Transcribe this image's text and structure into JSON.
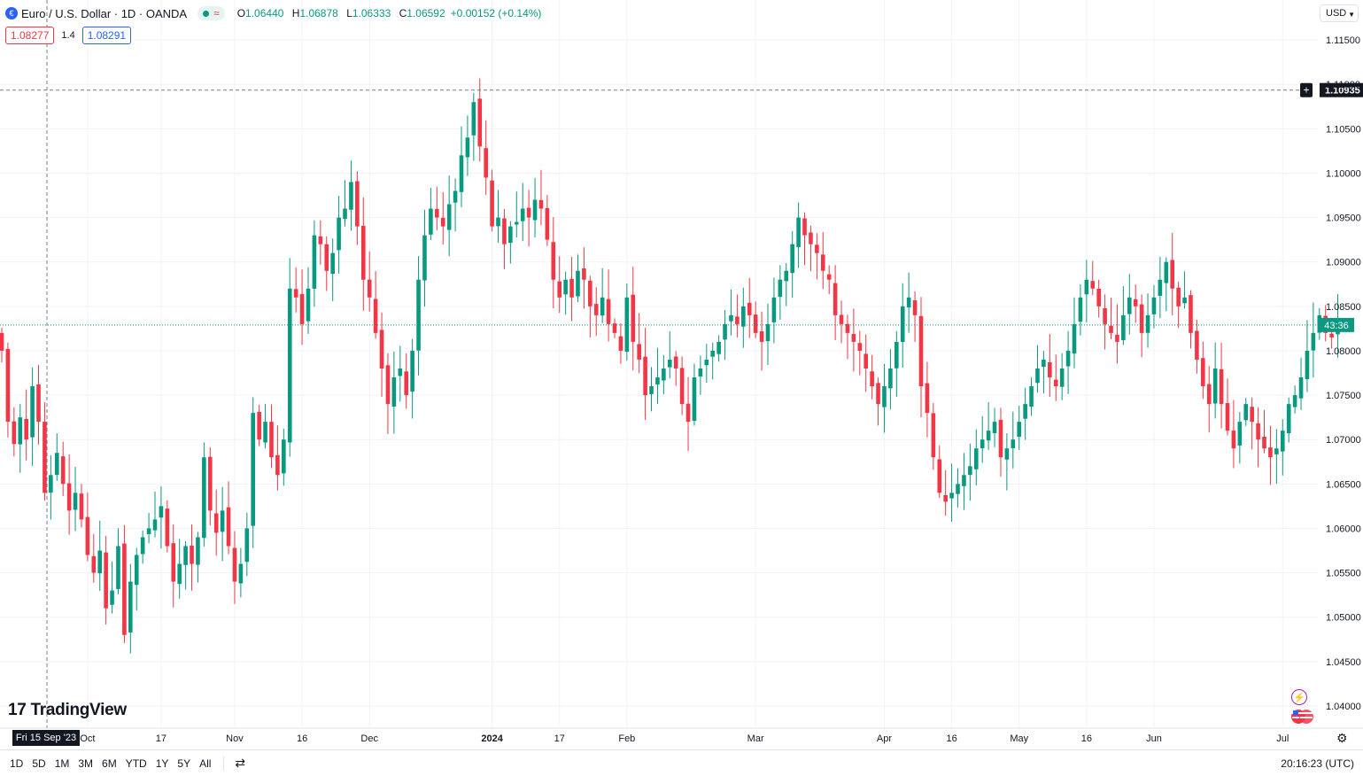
{
  "header": {
    "symbol_title": "Euro / U.S. Dollar · 1D · OANDA",
    "symbol_badge": "€",
    "status_wave": "≈",
    "ohlc": {
      "o_label": "O",
      "o": "1.06440",
      "h_label": "H",
      "h": "1.06878",
      "l_label": "L",
      "l": "1.06333",
      "c_label": "C",
      "c": "1.06592",
      "change": "+0.00152 (+0.14%)"
    },
    "sell_price": "1.08277",
    "spread": "1.4",
    "buy_price": "1.08291",
    "currency": "USD"
  },
  "brand": {
    "logo_mark": "17",
    "name": "TradingView"
  },
  "crosshair": {
    "date_label": "Fri 15 Sep '23",
    "price_label": "1.10935",
    "price": 1.10935
  },
  "bottom_bar": {
    "ranges": [
      "1D",
      "5D",
      "1M",
      "3M",
      "6M",
      "YTD",
      "1Y",
      "5Y",
      "All"
    ],
    "clock": "20:16:23 (UTC)"
  },
  "colors": {
    "up": "#089981",
    "down": "#f23645",
    "grid": "#f0f3fa",
    "axis_text": "#131722"
  },
  "chart_data": {
    "type": "candlestick",
    "title": "Euro / U.S. Dollar · 1D · OANDA",
    "ylim": [
      1.0375,
      1.1175
    ],
    "yticks": [
      "1.04000",
      "1.04500",
      "1.05000",
      "1.05500",
      "1.06000",
      "1.06500",
      "1.07000",
      "1.07500",
      "1.08000",
      "1.08500",
      "1.09000",
      "1.09500",
      "1.10000",
      "1.10500",
      "1.11000",
      "1.11500"
    ],
    "xticks": [
      {
        "label": "Oct",
        "bar": 14
      },
      {
        "label": "17",
        "bar": 26
      },
      {
        "label": "Nov",
        "bar": 38
      },
      {
        "label": "16",
        "bar": 49
      },
      {
        "label": "Dec",
        "bar": 60
      },
      {
        "label": "2024",
        "bar": 80
      },
      {
        "label": "17",
        "bar": 91
      },
      {
        "label": "Feb",
        "bar": 102
      },
      {
        "label": "Mar",
        "bar": 123
      },
      {
        "label": "Apr",
        "bar": 144
      },
      {
        "label": "16",
        "bar": 155
      },
      {
        "label": "May",
        "bar": 166
      },
      {
        "label": "16",
        "bar": 177
      },
      {
        "label": "Jun",
        "bar": 188
      },
      {
        "label": "Jul",
        "bar": 209
      }
    ],
    "last_price": 1.0829,
    "countdown": "43:36",
    "closes": [
      1.08,
      1.072,
      1.0695,
      1.0725,
      1.07,
      1.076,
      1.072,
      1.064,
      1.066,
      1.0685,
      1.065,
      1.062,
      1.064,
      1.061,
      1.057,
      1.055,
      1.0575,
      1.051,
      1.053,
      1.058,
      1.048,
      1.054,
      1.057,
      1.059,
      1.06,
      1.061,
      1.0625,
      1.058,
      1.054,
      1.056,
      1.058,
      1.056,
      1.059,
      1.068,
      1.062,
      1.0595,
      1.062,
      1.058,
      1.054,
      1.056,
      1.06,
      1.073,
      1.07,
      1.072,
      1.068,
      1.066,
      1.07,
      1.087,
      1.086,
      1.083,
      1.087,
      1.093,
      1.092,
      1.089,
      1.091,
      1.095,
      1.096,
      1.099,
      1.094,
      1.088,
      1.086,
      1.082,
      1.078,
      1.074,
      1.077,
      1.078,
      1.075,
      1.08,
      1.088,
      1.093,
      1.096,
      1.095,
      1.094,
      1.0965,
      1.098,
      1.102,
      1.104,
      1.108,
      1.103,
      1.0995,
      1.094,
      1.095,
      1.092,
      1.094,
      1.0945,
      1.096,
      1.095,
      1.097,
      1.096,
      1.0925,
      1.088,
      1.086,
      1.088,
      1.086,
      1.089,
      1.088,
      1.085,
      1.084,
      1.086,
      1.083,
      1.082,
      1.08,
      1.086,
      1.081,
      1.079,
      1.075,
      1.076,
      1.077,
      1.078,
      1.079,
      1.078,
      1.074,
      1.072,
      1.077,
      1.078,
      1.079,
      1.08,
      1.081,
      1.083,
      1.084,
      1.083,
      1.085,
      1.084,
      1.082,
      1.081,
      1.083,
      1.086,
      1.088,
      1.089,
      1.092,
      1.095,
      1.093,
      1.092,
      1.091,
      1.089,
      1.088,
      1.084,
      1.083,
      1.082,
      1.081,
      1.08,
      1.078,
      1.076,
      1.074,
      1.076,
      1.078,
      1.081,
      1.085,
      1.086,
      1.084,
      1.076,
      1.073,
      1.068,
      1.064,
      1.063,
      1.064,
      1.065,
      1.066,
      1.067,
      1.069,
      1.07,
      1.071,
      1.072,
      1.068,
      1.069,
      1.07,
      1.072,
      1.074,
      1.076,
      1.078,
      1.079,
      1.077,
      1.076,
      1.078,
      1.08,
      1.083,
      1.086,
      1.088,
      1.087,
      1.085,
      1.083,
      1.082,
      1.081,
      1.084,
      1.086,
      1.085,
      1.082,
      1.084,
      1.086,
      1.088,
      1.09,
      1.087,
      1.085,
      1.086,
      1.082,
      1.079,
      1.076,
      1.074,
      1.078,
      1.074,
      1.071,
      1.069,
      1.072,
      1.074,
      1.072,
      1.07,
      1.069,
      1.068,
      1.069,
      1.071,
      1.074,
      1.075,
      1.077,
      1.08,
      1.082,
      1.084,
      1.082,
      1.0815,
      1.0829
    ]
  }
}
